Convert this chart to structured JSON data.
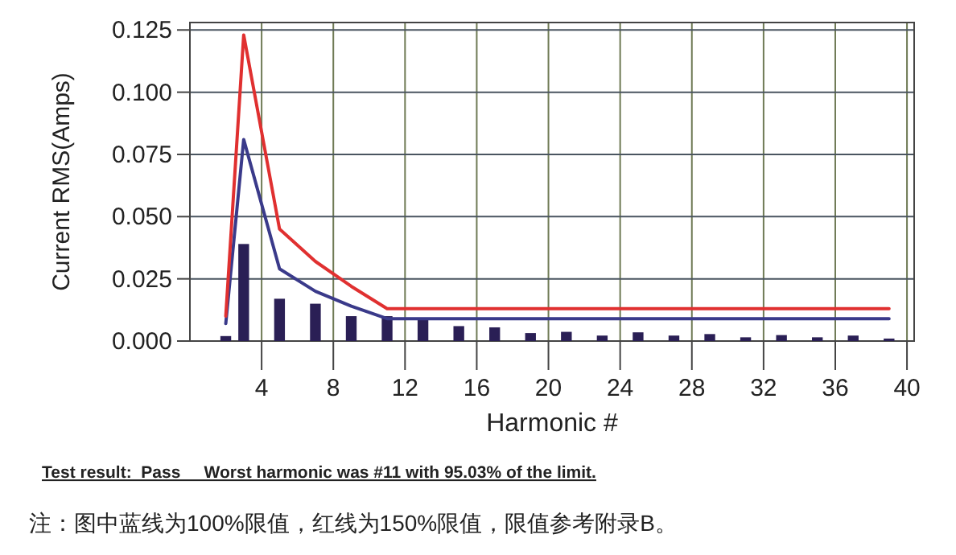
{
  "chart_data": {
    "type": "bar",
    "xlabel": "Harmonic #",
    "ylabel": "Current RMS(Amps)",
    "xlim": [
      0,
      40.4
    ],
    "ylim": [
      0,
      0.128
    ],
    "xticks": [
      4,
      8,
      12,
      16,
      20,
      24,
      28,
      32,
      36,
      40
    ],
    "yticks": [
      {
        "value": 0,
        "label": "0.000"
      },
      {
        "value": 0.025,
        "label": "0.025"
      },
      {
        "value": 0.05,
        "label": "0.050"
      },
      {
        "value": 0.075,
        "label": "0.075"
      },
      {
        "value": 0.1,
        "label": "0.100"
      },
      {
        "value": 0.125,
        "label": "0.125"
      }
    ],
    "grid": true,
    "series": [
      {
        "color": "#2a1f55",
        "x": [
          2,
          3,
          5,
          7,
          9,
          11,
          13,
          15,
          17,
          19,
          21,
          23,
          25,
          27,
          29,
          31,
          33,
          35,
          37,
          39
        ],
        "values": [
          0.002,
          0.039,
          0.017,
          0.015,
          0.01,
          0.01,
          0.009,
          0.006,
          0.0055,
          0.0032,
          0.0037,
          0.0022,
          0.0035,
          0.0022,
          0.0028,
          0.0015,
          0.0024,
          0.0015,
          0.0022,
          0.001
        ]
      },
      {
        "type": "line",
        "color": "#3a3a8a",
        "x": [
          2,
          3,
          5,
          7,
          9,
          11,
          39
        ],
        "values": [
          0.007,
          0.081,
          0.029,
          0.02,
          0.014,
          0.009,
          0.009
        ]
      },
      {
        "type": "line",
        "color": "#e03030",
        "x": [
          2,
          3,
          5,
          7,
          9,
          11,
          39
        ],
        "values": [
          0.01,
          0.123,
          0.045,
          0.032,
          0.022,
          0.013,
          0.013
        ]
      }
    ],
    "annotations": [
      "**Test result:  Pass     Worst harmonic was #11 with 95.03% of the limit.**",
      "注：图中蓝线为100%限值，红线为150%限值，限值参考附录B。"
    ]
  }
}
